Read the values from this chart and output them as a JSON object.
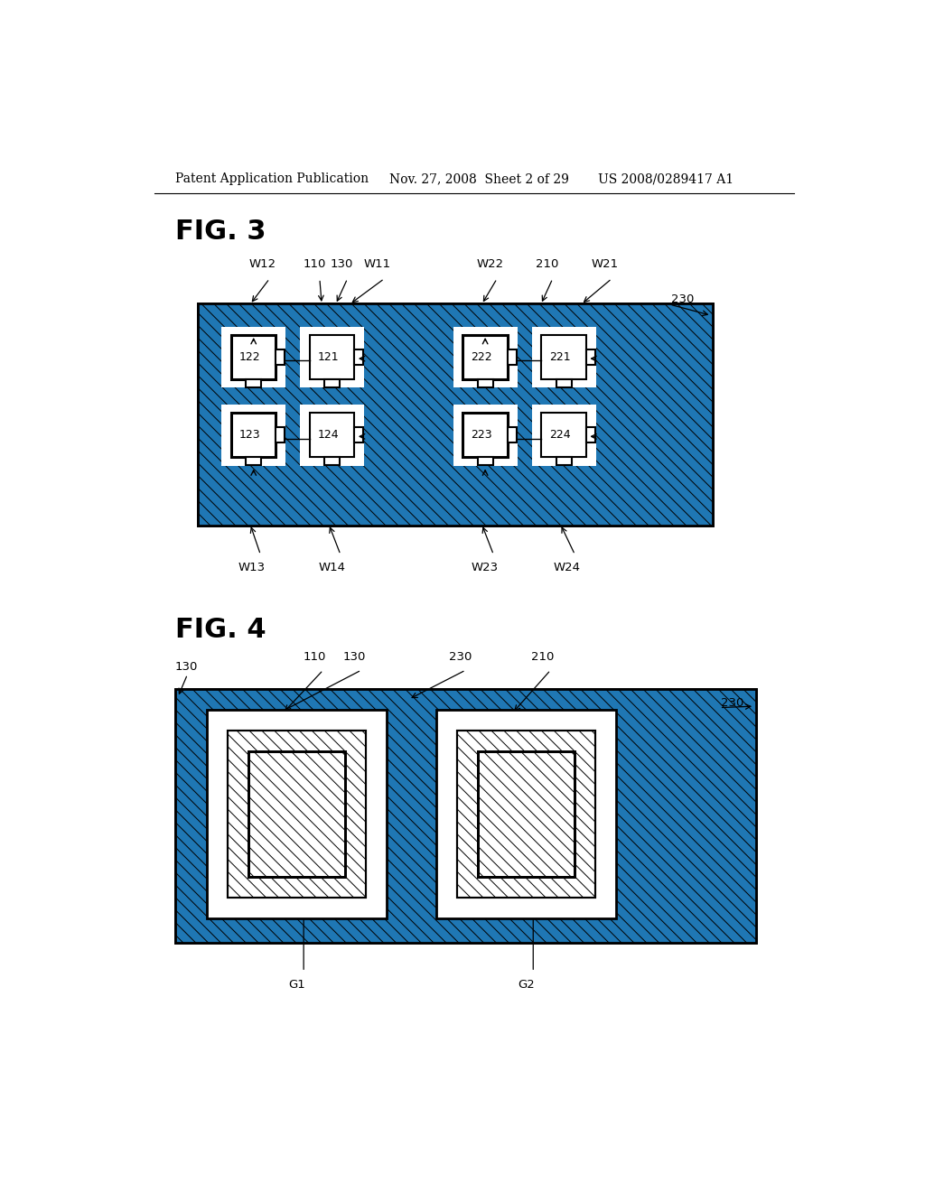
{
  "header_left": "Patent Application Publication",
  "header_mid": "Nov. 27, 2008  Sheet 2 of 29",
  "header_right": "US 2008/0289417 A1",
  "fig3_title": "FIG. 3",
  "fig4_title": "FIG. 4",
  "bg_color": "#ffffff"
}
